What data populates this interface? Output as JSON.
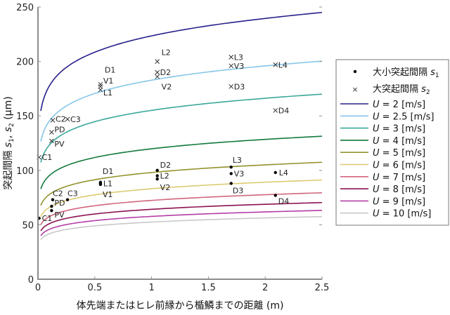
{
  "chart_data": {
    "type": "line",
    "xlabel": "体先端またはヒレ前縁から楯鱗までの距離 (m)",
    "ylabel": {
      "prefix": "突起間隔 ",
      "s1": "s",
      "s1_sub": "1",
      "sep": ", ",
      "s2": "s",
      "s2_sub": "2",
      "unit": " (μm)"
    },
    "xlim": [
      0,
      2.5
    ],
    "ylim": [
      0,
      250
    ],
    "xticks": [
      "0",
      "0.5",
      "1",
      "1.5",
      "2",
      "2.5"
    ],
    "yticks": [
      "0",
      "50",
      "100",
      "150",
      "200",
      "250"
    ],
    "grid": false,
    "legend_placement": "right-outside",
    "x": [
      0.025,
      0.05,
      0.1,
      0.25,
      0.5,
      0.75,
      1,
      1.5,
      2,
      2.5
    ],
    "series": [
      {
        "name": "U = 2 [m/s]",
        "U": "2",
        "color": "#27208a",
        "values": [
          154.6,
          165.6,
          177.5,
          194.6,
          208.5,
          217.2,
          223.5,
          232.8,
          239.5,
          245.0
        ]
      },
      {
        "name": "U = 2.5 [m/s]",
        "U": "2.5",
        "color": "#86c6e8",
        "values": [
          126.5,
          135.5,
          145.2,
          159.1,
          170.6,
          177.6,
          182.8,
          190.4,
          195.9,
          200.3
        ]
      },
      {
        "name": "U = 3 [m/s]",
        "U": "3",
        "color": "#3aa898",
        "values": [
          107.3,
          114.9,
          123.2,
          135.0,
          144.7,
          150.7,
          155.1,
          161.5,
          166.2,
          170.0
        ]
      },
      {
        "name": "U = 4 [m/s]",
        "U": "4",
        "color": "#137a3c",
        "values": [
          82.9,
          88.8,
          95.2,
          104.3,
          111.8,
          116.4,
          119.8,
          124.8,
          128.4,
          131.3
        ]
      },
      {
        "name": "U = 5 [m/s]",
        "U": "5",
        "color": "#94922c",
        "values": [
          67.8,
          72.6,
          77.8,
          85.3,
          91.4,
          95.2,
          98.0,
          102.1,
          105.0,
          107.4
        ]
      },
      {
        "name": "U = 6 [m/s]",
        "U": "6",
        "color": "#dccb72",
        "values": [
          57.5,
          61.6,
          66.0,
          72.3,
          77.5,
          80.7,
          83.1,
          86.5,
          89.1,
          91.1
        ]
      },
      {
        "name": "U = 7 [m/s]",
        "U": "7",
        "color": "#d0667e",
        "values": [
          50.1,
          53.7,
          57.5,
          63.0,
          67.5,
          70.3,
          72.4,
          75.4,
          77.6,
          79.4
        ]
      },
      {
        "name": "U = 8 [m/s]",
        "U": "8",
        "color": "#8c1250",
        "values": [
          44.4,
          47.6,
          51.0,
          55.9,
          59.9,
          62.4,
          64.2,
          66.9,
          68.8,
          70.4
        ]
      },
      {
        "name": "U = 9 [m/s]",
        "U": "9",
        "color": "#b43ea6",
        "values": [
          39.9,
          42.8,
          45.8,
          50.2,
          53.8,
          56.1,
          57.7,
          60.1,
          61.8,
          63.2
        ]
      },
      {
        "name": "U = 10 [m/s]",
        "U": "10",
        "color": "#c9c9c9",
        "values": [
          36.3,
          38.9,
          41.7,
          45.7,
          49.0,
          51.0,
          52.5,
          54.7,
          56.3,
          57.5
        ]
      }
    ],
    "legend": {
      "s1": {
        "text": "大小突起間隔 ",
        "var": "s",
        "sub": "1",
        "marker": "dot"
      },
      "s2": {
        "text": "大突起間隔 ",
        "var": "s",
        "sub": "2",
        "marker": "cross"
      },
      "u_var": "U",
      "u_eq": " = ",
      "u_unit": " [m/s]"
    },
    "s1_points": [
      {
        "label": "C1",
        "x": 0.01,
        "y": 56
      },
      {
        "label": "C2",
        "x": 0.13,
        "y": 73
      },
      {
        "label": "C3",
        "x": 0.26,
        "y": 73
      },
      {
        "label": "PD",
        "x": 0.12,
        "y": 67
      },
      {
        "label": "PV",
        "x": 0.12,
        "y": 63
      },
      {
        "label": "D1",
        "x": 0.55,
        "y": 89
      },
      {
        "label": "L1",
        "x": 0.55,
        "y": 88
      },
      {
        "label": "V1",
        "x": 0.55,
        "y": 87
      },
      {
        "label": "D2",
        "x": 1.05,
        "y": 100
      },
      {
        "label": "L2",
        "x": 1.05,
        "y": 95
      },
      {
        "label": "V2",
        "x": 1.05,
        "y": 92
      },
      {
        "label": "L3",
        "x": 1.7,
        "y": 103
      },
      {
        "label": "V3",
        "x": 1.7,
        "y": 97
      },
      {
        "label": "D3",
        "x": 1.7,
        "y": 88
      },
      {
        "label": "L4",
        "x": 2.09,
        "y": 98
      },
      {
        "label": "D4",
        "x": 2.09,
        "y": 77
      }
    ],
    "s2_points": [
      {
        "label": "C1",
        "x": 0.01,
        "y": 112
      },
      {
        "label": "C2",
        "x": 0.13,
        "y": 146
      },
      {
        "label": "C3",
        "x": 0.26,
        "y": 147
      },
      {
        "label": "PD",
        "x": 0.12,
        "y": 135
      },
      {
        "label": "PV",
        "x": 0.12,
        "y": 127
      },
      {
        "label": "D1",
        "x": 0.55,
        "y": 177
      },
      {
        "label": "V1",
        "x": 0.55,
        "y": 179
      },
      {
        "label": "L1",
        "x": 0.55,
        "y": 174
      },
      {
        "label": "L2",
        "x": 1.05,
        "y": 200
      },
      {
        "label": "D2",
        "x": 1.05,
        "y": 190
      },
      {
        "label": "V2",
        "x": 1.05,
        "y": 186
      },
      {
        "label": "L3",
        "x": 1.7,
        "y": 204
      },
      {
        "label": "V3",
        "x": 1.7,
        "y": 196
      },
      {
        "label": "D3",
        "x": 1.7,
        "y": 177
      },
      {
        "label": "L4",
        "x": 2.09,
        "y": 197
      },
      {
        "label": "D4",
        "x": 2.09,
        "y": 155
      }
    ]
  }
}
